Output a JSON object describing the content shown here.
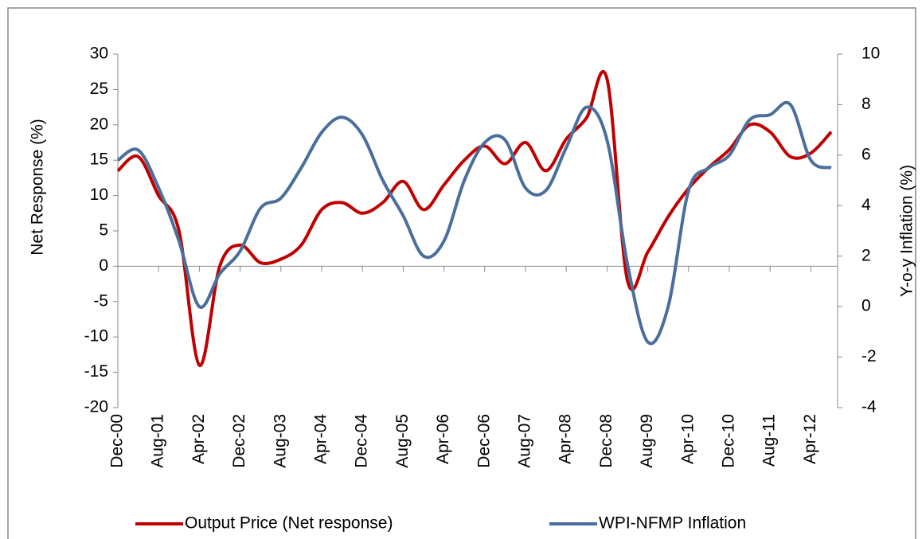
{
  "chart_data": {
    "type": "line",
    "y_label": "Net Response (%)",
    "y2_label": "Y-o-y Inflation (%)",
    "categories": [
      "Dec-00",
      null,
      "Aug-01",
      null,
      "Apr-02",
      null,
      "Dec-02",
      null,
      "Aug-03",
      null,
      "Apr-04",
      null,
      "Dec-04",
      null,
      "Aug-05",
      null,
      "Apr-06",
      null,
      "Dec-06",
      null,
      "Aug-07",
      null,
      "Apr-08",
      null,
      "Dec-08",
      null,
      "Aug-09",
      null,
      "Apr-10",
      null,
      "Dec-10",
      null,
      "Aug-11",
      null,
      "Apr-12",
      null
    ],
    "ylim": [
      -20,
      30
    ],
    "yticks": [
      -20,
      -15,
      -10,
      -5,
      0,
      5,
      10,
      15,
      20,
      25,
      30
    ],
    "y2lim": [
      -4,
      10
    ],
    "y2ticks": [
      -4,
      -2,
      0,
      2,
      4,
      6,
      8,
      10
    ],
    "legend": "bottom",
    "series": [
      {
        "name": "Output Price (Net response)",
        "color": "#c00000",
        "values": [
          13.5,
          15.5,
          10,
          5,
          -14,
          0,
          3,
          0.5,
          1,
          3,
          8,
          9,
          7.5,
          9,
          12,
          8,
          11.5,
          15,
          17,
          14.5,
          17.5,
          13.5,
          18,
          21,
          26.5,
          -2,
          2,
          7,
          11,
          14,
          16.5,
          20,
          19,
          15.5,
          16,
          19
        ]
      },
      {
        "name": "WPI-NFMP Inflation",
        "color": "#4a6f9c",
        "axis": "y2",
        "values": [
          5.8,
          6.2,
          4.7,
          2.6,
          0,
          1.3,
          2.2,
          3.9,
          4.3,
          5.5,
          6.9,
          7.5,
          6.8,
          5.0,
          3.6,
          2.0,
          2.6,
          5.0,
          6.5,
          6.6,
          4.7,
          4.6,
          6.3,
          7.9,
          6.6,
          1.7,
          -1.4,
          0,
          4.6,
          5.5,
          6.0,
          7.4,
          7.6,
          8.0,
          5.8,
          5.5
        ]
      }
    ]
  }
}
